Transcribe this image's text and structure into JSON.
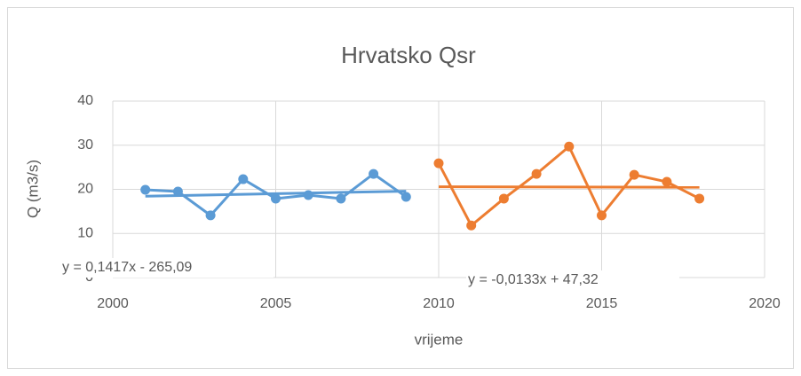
{
  "chart_data": {
    "type": "line",
    "title": "Hrvatsko Qsr",
    "x_label": "vrijeme",
    "y_label": "Q (m3/s)",
    "xlim": [
      2000,
      2020
    ],
    "xticks": [
      2000,
      2005,
      2010,
      2015,
      2020
    ],
    "ylim": [
      0,
      40
    ],
    "yticks": [
      0,
      10,
      20,
      30,
      40
    ],
    "grid": true,
    "series": [
      {
        "color": "#5b9bd5",
        "x": [
          2001,
          2002,
          2003,
          2004,
          2005,
          2006,
          2007,
          2008,
          2009
        ],
        "values": [
          19.9,
          19.5,
          14.1,
          22.3,
          17.9,
          18.7,
          17.9,
          23.5,
          18.3
        ],
        "trendline": {
          "label": "y = 0,1417x - 265,09",
          "slope": 0.1417,
          "intercept": -265.09
        }
      },
      {
        "color": "#ed7d31",
        "x": [
          2010,
          2011,
          2012,
          2013,
          2014,
          2015,
          2016,
          2017,
          2018
        ],
        "values": [
          25.9,
          11.8,
          17.9,
          23.5,
          29.7,
          14.1,
          23.3,
          21.7,
          17.9
        ],
        "trendline": {
          "label": "y = -0,0133x + 47,32",
          "slope": -0.0133,
          "intercept": 47.32
        }
      }
    ]
  }
}
